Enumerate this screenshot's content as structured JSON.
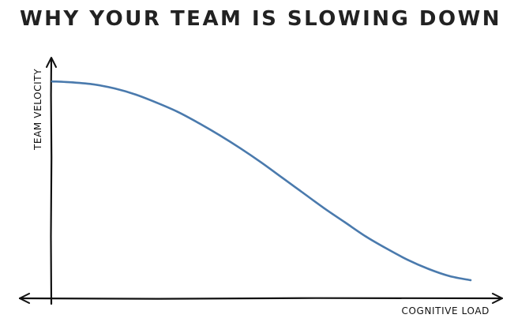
{
  "chart_data": {
    "type": "line",
    "title": "WHY YOUR TEAM IS SLOWING DOWN",
    "xlabel": "COGNITIVE LOAD",
    "ylabel": "TEAM VELOCITY",
    "x_ticks": "none",
    "y_ticks": "none",
    "grid": false,
    "legend": "none",
    "x": [
      0,
      0.05,
      0.1,
      0.15,
      0.2,
      0.25,
      0.3,
      0.35,
      0.4,
      0.45,
      0.5,
      0.55,
      0.6,
      0.65,
      0.7,
      0.75,
      0.8,
      0.85,
      0.9,
      0.95,
      1.0
    ],
    "series": [
      {
        "color": "#4a7aad",
        "values": [
          1.0,
          0.995,
          0.985,
          0.965,
          0.935,
          0.895,
          0.85,
          0.795,
          0.735,
          0.67,
          0.6,
          0.525,
          0.45,
          0.375,
          0.305,
          0.235,
          0.175,
          0.12,
          0.075,
          0.04,
          0.02
        ]
      }
    ],
    "xlim": [
      0,
      1
    ],
    "ylim": [
      -0.05,
      1.02
    ],
    "colors": {
      "line": "#4a7aad",
      "axes": "#111111",
      "title": "#222222",
      "background": "#ffffff"
    }
  }
}
